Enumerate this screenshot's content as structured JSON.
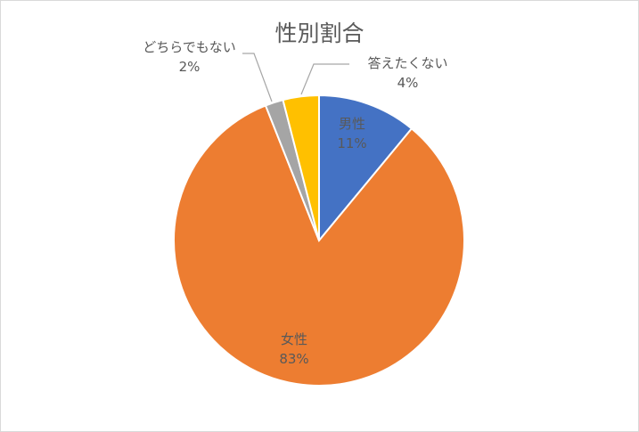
{
  "chart_data": {
    "type": "pie",
    "title": "性別割合",
    "categories": [
      "男性",
      "女性",
      "どちらでもない",
      "答えたくない"
    ],
    "values": [
      11,
      83,
      2,
      4
    ],
    "value_labels": [
      "11%",
      "83%",
      "2%",
      "4%"
    ],
    "colors": [
      "#4472c4",
      "#ed7d31",
      "#a5a5a5",
      "#ffc000"
    ]
  }
}
